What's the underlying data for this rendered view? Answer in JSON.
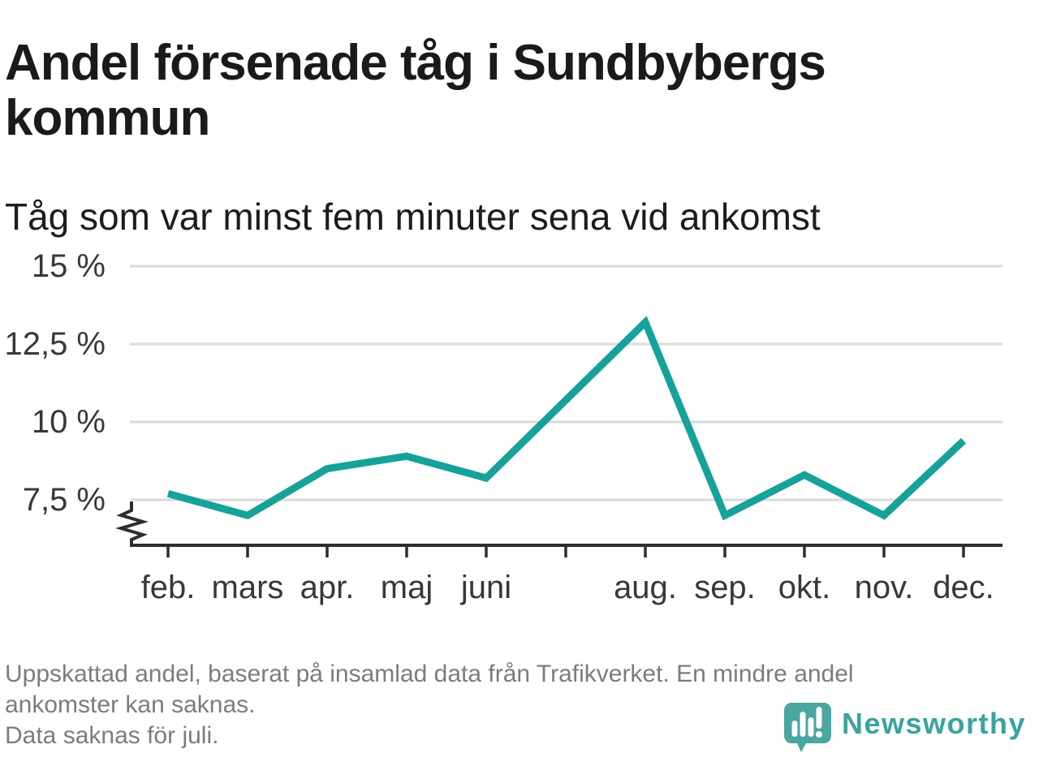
{
  "header": {
    "title": "Andel försenade tåg i Sundbybergs kommun",
    "subtitle": "Tåg som var minst fem minuter sena vid ankomst"
  },
  "chart_data": {
    "type": "line",
    "title": "Andel försenade tåg i Sundbybergs kommun",
    "subtitle": "Tåg som var minst fem minuter sena vid ankomst",
    "unit": "%",
    "categories": [
      "feb.",
      "mars",
      "apr.",
      "maj",
      "juni",
      "juli",
      "aug.",
      "sep.",
      "okt.",
      "nov.",
      "dec."
    ],
    "x_tick_labels": [
      "feb.",
      "mars",
      "apr.",
      "maj",
      "juni",
      "",
      "aug.",
      "sep.",
      "okt.",
      "nov.",
      "dec."
    ],
    "values": [
      7.7,
      7.0,
      8.5,
      8.9,
      8.2,
      null,
      13.2,
      7.0,
      8.3,
      7.0,
      9.4
    ],
    "missing_data_month": "juli",
    "y_ticks": [
      {
        "value": 7.5,
        "label": "7,5 %"
      },
      {
        "value": 10,
        "label": "10 %"
      },
      {
        "value": 12.5,
        "label": "12,5 %"
      },
      {
        "value": 15,
        "label": "15 %"
      }
    ],
    "ylim_shown": [
      7.5,
      15
    ],
    "axis_break": true,
    "grid": true,
    "legend": "none",
    "line_color": "#16a298",
    "grid_color": "#dadada",
    "axis_color": "#2e2e2e"
  },
  "footer": {
    "notes": [
      "Uppskattad andel, baserat på insamlad data från Trafikverket. En mindre andel",
      "ankomster kan saknas.",
      "Data saknas för juli."
    ],
    "logo_text": "Newsworthy"
  }
}
